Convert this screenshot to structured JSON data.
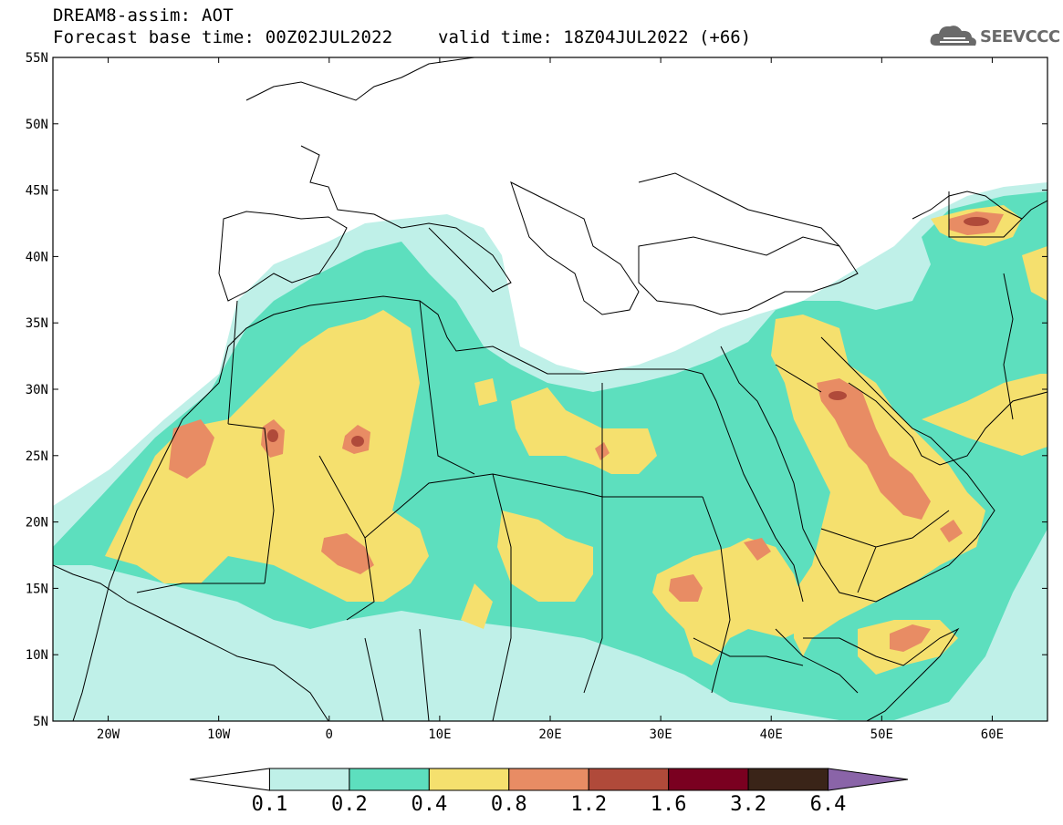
{
  "header": {
    "title": "DREAM8-assim: AOT",
    "base_time": "Forecast base time: 00Z02JUL2022",
    "valid_time": "valid time: 18Z04JUL2022 (+66)",
    "logo_text": "SEEVCCC",
    "logo_icon": "cloud-icon"
  },
  "map": {
    "lat_labels": [
      "55N",
      "50N",
      "45N",
      "40N",
      "35N",
      "30N",
      "25N",
      "20N",
      "15N",
      "10N",
      "5N"
    ],
    "lat_values": [
      55,
      50,
      45,
      40,
      35,
      30,
      25,
      20,
      15,
      10,
      5
    ],
    "lon_labels": [
      "20W",
      "10W",
      "0",
      "10E",
      "20E",
      "30E",
      "40E",
      "50E",
      "60E"
    ],
    "lon_values": [
      -20,
      -10,
      0,
      10,
      20,
      30,
      40,
      50,
      60
    ],
    "lon_range": [
      -25,
      65
    ],
    "lat_range": [
      5,
      55
    ]
  },
  "colorbar": {
    "labels": [
      "0.1",
      "0.2",
      "0.4",
      "0.8",
      "1.2",
      "1.6",
      "3.2",
      "6.4"
    ],
    "colors": [
      "#ffffff",
      "#bff0e8",
      "#5ddfbe",
      "#f5e06e",
      "#e88c64",
      "#b04a3a",
      "#7a0020",
      "#3a2418",
      "#8a64a8"
    ]
  }
}
